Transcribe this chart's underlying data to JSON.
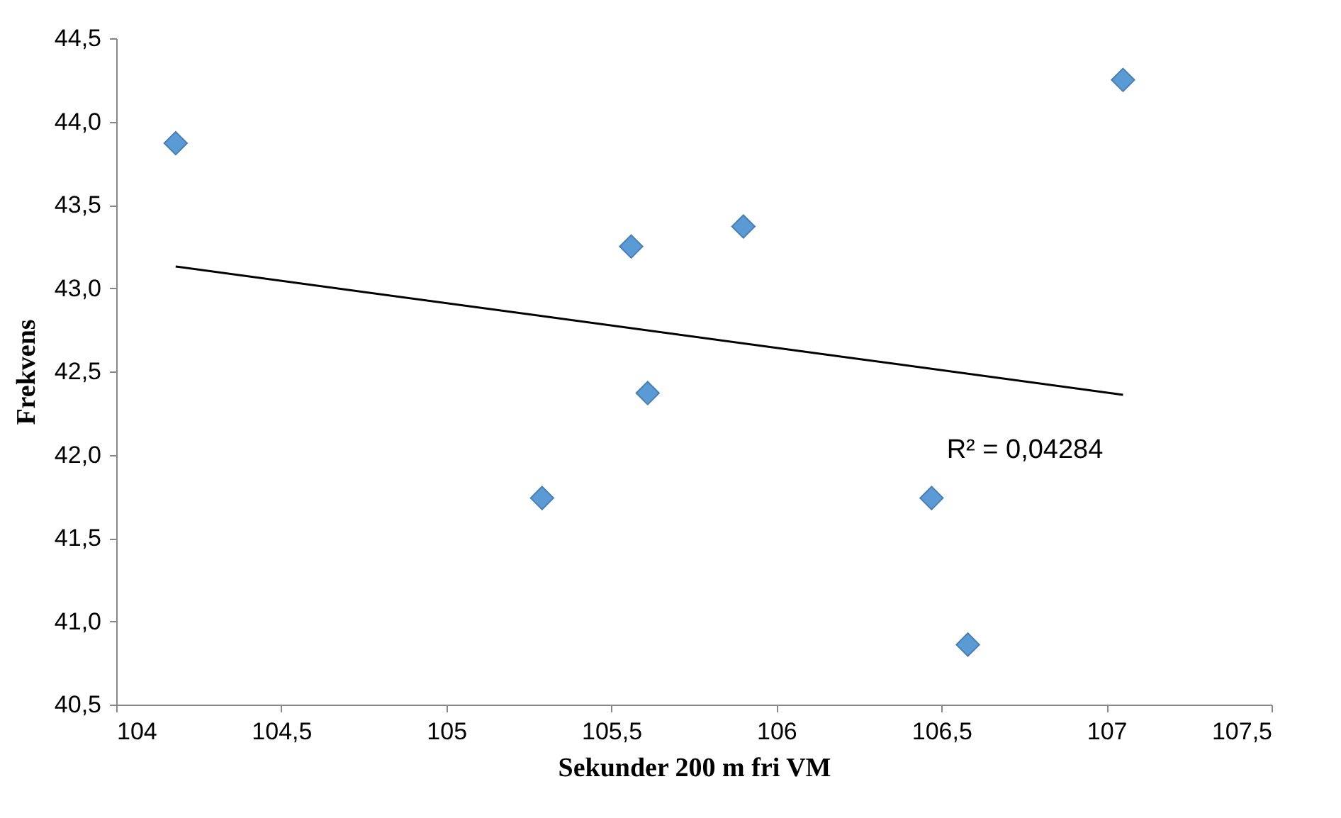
{
  "chart_data": {
    "type": "scatter",
    "xlabel": "Sekunder 200 m fri VM",
    "ylabel": "Frekvens",
    "xlim": [
      104,
      107.5
    ],
    "ylim": [
      40.5,
      44.5
    ],
    "xticks": [
      {
        "value": 104,
        "label": "104"
      },
      {
        "value": 104.5,
        "label": "104,5"
      },
      {
        "value": 105,
        "label": "105"
      },
      {
        "value": 105.5,
        "label": "105,5"
      },
      {
        "value": 106,
        "label": "106"
      },
      {
        "value": 106.5,
        "label": "106,5"
      },
      {
        "value": 107,
        "label": "107"
      },
      {
        "value": 107.5,
        "label": "107,5"
      }
    ],
    "yticks": [
      {
        "value": 40.5,
        "label": "40,5"
      },
      {
        "value": 41,
        "label": "41,0"
      },
      {
        "value": 41.5,
        "label": "41,5"
      },
      {
        "value": 42,
        "label": "42,0"
      },
      {
        "value": 42.5,
        "label": "42,5"
      },
      {
        "value": 43,
        "label": "43,0"
      },
      {
        "value": 43.5,
        "label": "43,5"
      },
      {
        "value": 44,
        "label": "44,0"
      },
      {
        "value": 44.5,
        "label": "44,5"
      }
    ],
    "x": [
      104.18,
      105.29,
      105.56,
      105.61,
      105.9,
      106.47,
      106.58,
      107.05
    ],
    "series": [
      {
        "color": "#5b9bd5",
        "marker": "diamond",
        "values": [
          43.87,
          41.74,
          43.25,
          42.37,
          43.37,
          41.74,
          40.86,
          44.25
        ]
      },
      {
        "type": "line",
        "color": "#000000",
        "marker": "none",
        "x": [
          104.18,
          107.05
        ],
        "values": [
          43.13,
          42.36
        ]
      }
    ],
    "annotations": [
      "R² = 0,04284"
    ],
    "grid": false
  }
}
